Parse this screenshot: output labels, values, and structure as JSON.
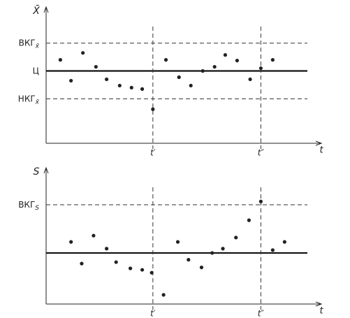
{
  "chart_data": [
    {
      "type": "scatter",
      "y_label": "X̄",
      "x_label": "t",
      "color": "#222222",
      "xlim": [
        0,
        23.2
      ],
      "ylim": [
        -2.6,
        2.3
      ],
      "xticks": [
        {
          "value": 9,
          "label": "t′"
        },
        {
          "value": 18.1,
          "label": "t″"
        }
      ],
      "yticks": [
        {
          "value": 1,
          "label": "ВКГ",
          "sub": "x̄"
        },
        {
          "value": 0,
          "label": "Ц"
        },
        {
          "value": -1,
          "label": "НКГ",
          "sub": "x̄"
        }
      ],
      "center_line": 0,
      "x": [
        1.2,
        2.1,
        3.1,
        4.2,
        5.1,
        6.2,
        7.2,
        8.1,
        9,
        10.1,
        11.2,
        12.2,
        13.2,
        14.2,
        15.1,
        16.1,
        17.2,
        18.1,
        19.1
      ],
      "values": [
        0.4,
        -0.35,
        0.65,
        0.15,
        -0.3,
        -0.525,
        -0.6,
        -0.65,
        -1.375,
        0.4,
        -0.225,
        -0.525,
        0,
        0.15,
        0.575,
        0.375,
        -0.3,
        0.1,
        0.4
      ]
    },
    {
      "type": "scatter",
      "y_label": "S",
      "x_label": "t",
      "color": "#222222",
      "xlim": [
        0,
        23.2
      ],
      "ylim": [
        -0.06,
        2.77
      ],
      "xticks": [
        {
          "value": 9,
          "label": "t′"
        },
        {
          "value": 18.1,
          "label": "t″"
        }
      ],
      "yticks": [
        {
          "value": 2,
          "label": "ВКГ",
          "sub": "S"
        }
      ],
      "center_line": 1,
      "x": [
        2.1,
        3,
        4,
        5.1,
        5.9,
        7.1,
        8.1,
        8.9,
        9.9,
        11.1,
        12,
        13.1,
        14,
        14.9,
        16,
        17.1,
        18.1,
        19.1,
        20.1
      ],
      "values": [
        1.23,
        0.78,
        1.36,
        1.09,
        0.81,
        0.68,
        0.65,
        0.59,
        0.13,
        1.23,
        0.86,
        0.7,
        1,
        1.09,
        1.32,
        1.68,
        2.07,
        1.06,
        1.23
      ]
    }
  ]
}
